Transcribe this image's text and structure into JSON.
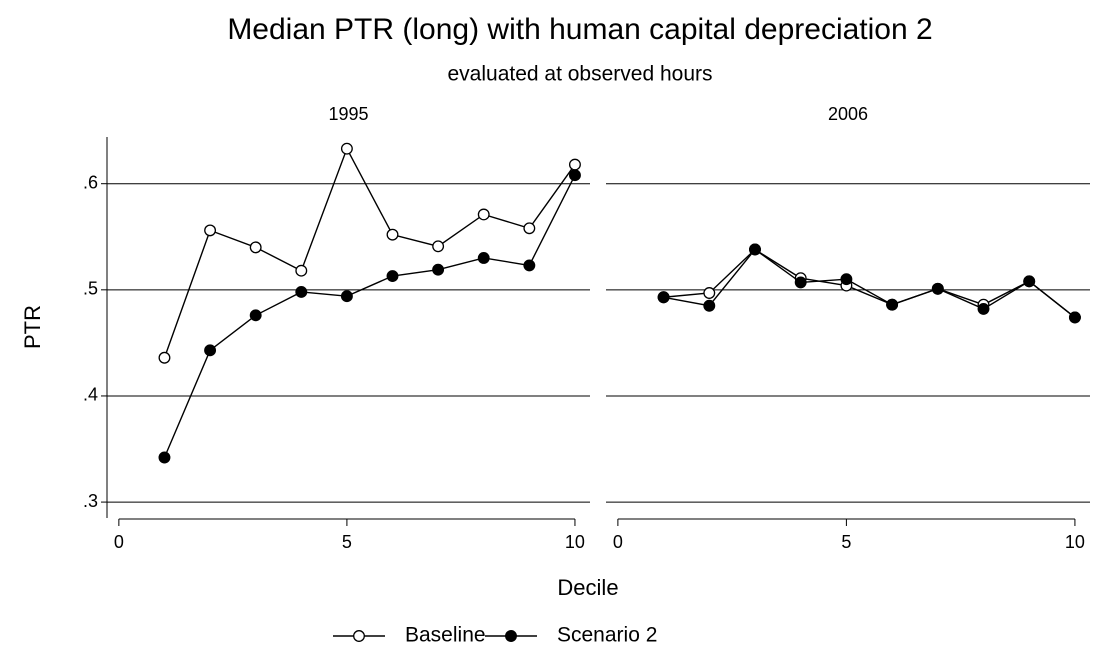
{
  "figure": {
    "title": "Median PTR (long) with human capital depreciation 2",
    "subtitle": "evaluated at observed hours",
    "x_label": "Decile",
    "y_label": "PTR"
  },
  "chart_data": [
    {
      "type": "line",
      "title": "1995",
      "x": [
        1,
        2,
        3,
        4,
        5,
        6,
        7,
        8,
        9,
        10
      ],
      "series": [
        {
          "name": "Baseline",
          "color": "#000000",
          "marker": "open",
          "values": [
            0.436,
            0.556,
            0.54,
            0.518,
            0.633,
            0.552,
            0.541,
            0.571,
            0.558,
            0.618
          ]
        },
        {
          "name": "Scenario 2",
          "color": "#000000",
          "marker": "filled",
          "values": [
            0.342,
            0.443,
            0.476,
            0.498,
            0.494,
            0.513,
            0.519,
            0.53,
            0.523,
            0.608
          ]
        }
      ],
      "xlim": [
        -0.26,
        10.33
      ],
      "ylim": [
        0.285,
        0.644
      ],
      "xticks": [
        0,
        5,
        10
      ],
      "yticks": [
        {
          "value": 0.3,
          "label": ".3"
        },
        {
          "value": 0.4,
          "label": ".4"
        },
        {
          "value": 0.5,
          "label": ".5"
        },
        {
          "value": 0.6,
          "label": ".6"
        }
      ],
      "grid": true
    },
    {
      "type": "line",
      "title": "2006",
      "x": [
        1,
        2,
        3,
        4,
        5,
        6,
        7,
        8,
        9,
        10
      ],
      "series": [
        {
          "name": "Baseline",
          "color": "#000000",
          "marker": "open",
          "values": [
            0.493,
            0.497,
            0.538,
            0.511,
            0.504,
            0.486,
            0.501,
            0.486,
            0.508,
            0.474
          ]
        },
        {
          "name": "Scenario 2",
          "color": "#000000",
          "marker": "filled",
          "values": [
            0.493,
            0.485,
            0.538,
            0.507,
            0.51,
            0.486,
            0.501,
            0.482,
            0.508,
            0.474
          ]
        }
      ],
      "xlim": [
        -0.26,
        10.33
      ],
      "ylim": [
        0.285,
        0.644
      ],
      "xticks": [
        0,
        5,
        10
      ],
      "yticks": [
        {
          "value": 0.3,
          "label": ".3"
        },
        {
          "value": 0.4,
          "label": ".4"
        },
        {
          "value": 0.5,
          "label": ".5"
        },
        {
          "value": 0.6,
          "label": ".6"
        }
      ],
      "grid": true
    }
  ]
}
